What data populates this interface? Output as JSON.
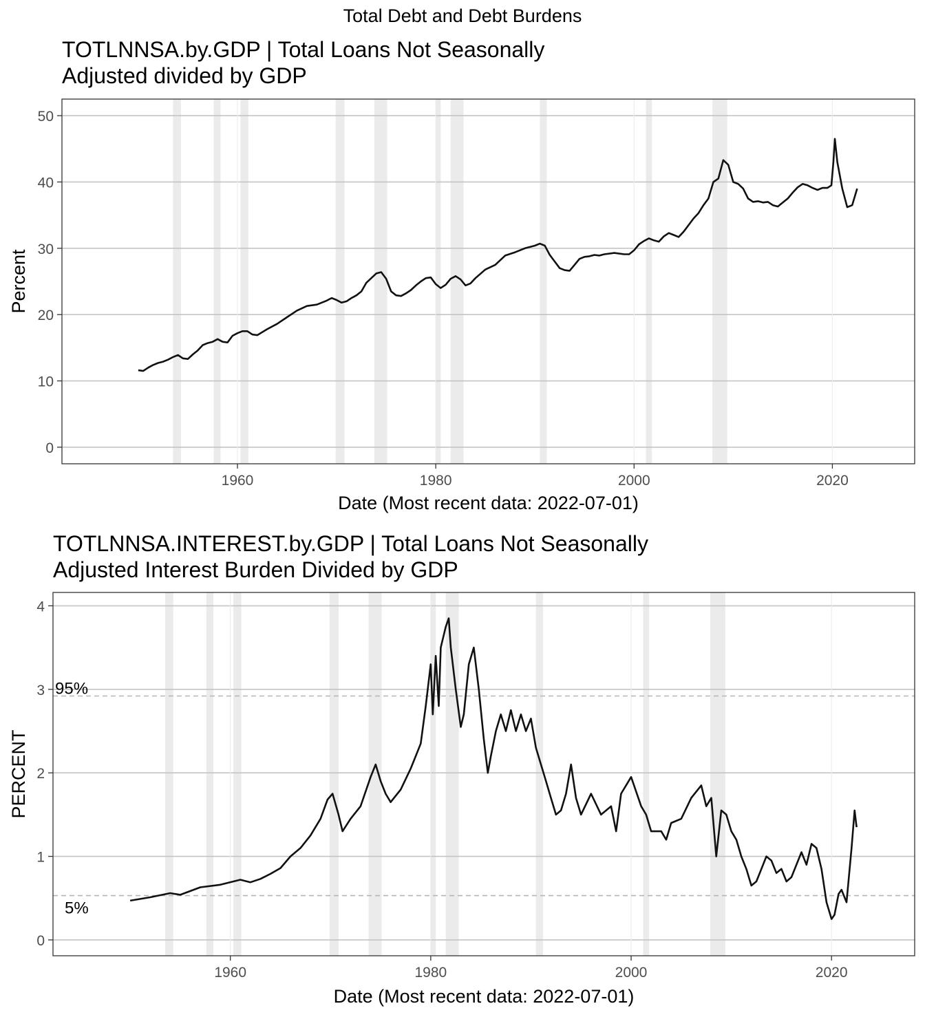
{
  "figure": {
    "title": "Total Debt and Debt Burdens"
  },
  "chart_data": [
    {
      "type": "line",
      "title_line1": "TOTLNNSA.by.GDP | Total Loans Not Seasonally",
      "title_line2": "Adjusted divided by GDP",
      "xlabel": "Date (Most recent data: 2022-07-01)",
      "ylabel": "Percent",
      "xlim": [
        1942.3,
        2028.3
      ],
      "ylim": [
        -2.5,
        52.5
      ],
      "x_ticks": [
        1960,
        1980,
        2000,
        2020
      ],
      "x_tick_labels": [
        "1960",
        "1980",
        "2000",
        "2020"
      ],
      "y_ticks": [
        0,
        10,
        20,
        30,
        40,
        50
      ],
      "y_tick_labels": [
        "0",
        "10",
        "20",
        "30",
        "40",
        "50"
      ],
      "grid": true,
      "recessions": [
        [
          1953.5,
          1954.3
        ],
        [
          1957.6,
          1958.3
        ],
        [
          1960.3,
          1961.1
        ],
        [
          1969.9,
          1970.8
        ],
        [
          1973.8,
          1975.1
        ],
        [
          1980.0,
          1980.5
        ],
        [
          1981.5,
          1982.8
        ],
        [
          1990.5,
          1991.2
        ],
        [
          2001.2,
          2001.8
        ],
        [
          2007.9,
          2009.4
        ]
      ],
      "series": [
        {
          "x": [
            1950.0,
            1950.5,
            1951.0,
            1951.5,
            1952.0,
            1952.5,
            1953.0,
            1953.5,
            1954.0,
            1954.5,
            1955.0,
            1955.5,
            1956.0,
            1956.5,
            1957.0,
            1957.5,
            1958.0,
            1958.5,
            1959.0,
            1959.5,
            1960.0,
            1960.5,
            1961.0,
            1961.5,
            1962.0,
            1963.0,
            1964.0,
            1965.0,
            1966.0,
            1967.0,
            1968.0,
            1969.0,
            1969.5,
            1970.0,
            1970.5,
            1971.0,
            1971.5,
            1972.0,
            1972.5,
            1973.0,
            1973.5,
            1974.0,
            1974.5,
            1975.0,
            1975.5,
            1976.0,
            1976.5,
            1977.0,
            1977.5,
            1978.0,
            1978.5,
            1979.0,
            1979.5,
            1980.0,
            1980.5,
            1981.0,
            1981.5,
            1982.0,
            1982.5,
            1983.0,
            1983.5,
            1984.0,
            1985.0,
            1986.0,
            1987.0,
            1988.0,
            1989.0,
            1990.0,
            1990.5,
            1991.0,
            1991.5,
            1992.0,
            1992.5,
            1993.0,
            1993.5,
            1994.0,
            1994.5,
            1995.0,
            1995.5,
            1996.0,
            1996.5,
            1997.0,
            1998.0,
            1999.0,
            1999.5,
            2000.0,
            2000.5,
            2001.0,
            2001.5,
            2002.0,
            2002.5,
            2003.0,
            2003.5,
            2004.0,
            2004.5,
            2005.0,
            2005.5,
            2006.0,
            2006.5,
            2007.0,
            2007.5,
            2008.0,
            2008.5,
            2009.0,
            2009.5,
            2010.0,
            2010.5,
            2011.0,
            2011.5,
            2012.0,
            2012.5,
            2013.0,
            2013.5,
            2014.0,
            2014.5,
            2015.0,
            2015.5,
            2016.0,
            2016.5,
            2017.0,
            2017.5,
            2018.0,
            2018.5,
            2019.0,
            2019.5,
            2019.9,
            2020.1,
            2020.25,
            2020.5,
            2021.0,
            2021.5,
            2022.0,
            2022.5
          ],
          "y": [
            11.6,
            11.5,
            12.0,
            12.4,
            12.7,
            12.9,
            13.2,
            13.6,
            13.9,
            13.4,
            13.3,
            14.0,
            14.6,
            15.4,
            15.7,
            15.9,
            16.3,
            15.9,
            15.8,
            16.8,
            17.2,
            17.5,
            17.5,
            17.0,
            16.9,
            17.8,
            18.6,
            19.6,
            20.6,
            21.3,
            21.5,
            22.1,
            22.5,
            22.2,
            21.8,
            22.0,
            22.5,
            22.9,
            23.5,
            24.8,
            25.5,
            26.2,
            26.4,
            25.4,
            23.5,
            22.9,
            22.8,
            23.2,
            23.7,
            24.4,
            25.0,
            25.5,
            25.6,
            24.6,
            24.0,
            24.5,
            25.4,
            25.8,
            25.3,
            24.4,
            24.7,
            25.5,
            26.8,
            27.5,
            28.9,
            29.4,
            30.0,
            30.4,
            30.7,
            30.4,
            29.0,
            28.0,
            27.0,
            26.7,
            26.6,
            27.5,
            28.4,
            28.7,
            28.8,
            29.0,
            28.9,
            29.1,
            29.3,
            29.1,
            29.1,
            29.7,
            30.6,
            31.1,
            31.5,
            31.2,
            31.0,
            31.8,
            32.3,
            32.0,
            31.7,
            32.5,
            33.5,
            34.5,
            35.3,
            36.5,
            37.5,
            40.0,
            40.5,
            43.3,
            42.6,
            40.0,
            39.7,
            39.0,
            37.5,
            37.0,
            37.1,
            36.9,
            37.0,
            36.5,
            36.3,
            36.9,
            37.5,
            38.4,
            39.2,
            39.7,
            39.5,
            39.1,
            38.8,
            39.1,
            39.1,
            39.5,
            43.0,
            46.5,
            43.0,
            39.0,
            36.2,
            36.5,
            39.0
          ]
        }
      ]
    },
    {
      "type": "line",
      "title_line1": "TOTLNNSA.INTEREST.by.GDP | Total Loans Not Seasonally",
      "title_line2": "Adjusted Interest Burden Divided by GDP",
      "xlabel": "Date (Most recent data: 2022-07-01)",
      "ylabel": "PERCENT",
      "xlim": [
        1942.3,
        2028.3
      ],
      "ylim": [
        -0.19,
        4.16
      ],
      "x_ticks": [
        1960,
        1980,
        2000,
        2020
      ],
      "x_tick_labels": [
        "1960",
        "1980",
        "2000",
        "2020"
      ],
      "y_ticks": [
        0,
        1,
        2,
        3,
        4
      ],
      "y_tick_labels": [
        "0",
        "1",
        "2",
        "3",
        "4"
      ],
      "grid": true,
      "recessions": [
        [
          1953.5,
          1954.3
        ],
        [
          1957.6,
          1958.3
        ],
        [
          1960.3,
          1961.1
        ],
        [
          1969.9,
          1970.8
        ],
        [
          1973.8,
          1975.1
        ],
        [
          1980.0,
          1980.5
        ],
        [
          1981.5,
          1982.8
        ],
        [
          1990.5,
          1991.2
        ],
        [
          2001.2,
          2001.8
        ],
        [
          2007.9,
          2009.4
        ]
      ],
      "reference_lines": [
        {
          "label": "95%",
          "y": 2.92
        },
        {
          "label": "5%",
          "y": 0.53
        }
      ],
      "series": [
        {
          "x": [
            1950.0,
            1952.0,
            1954.0,
            1955.0,
            1957.0,
            1959.0,
            1961.0,
            1962.0,
            1963.0,
            1964.0,
            1965.0,
            1966.0,
            1967.0,
            1968.0,
            1969.0,
            1969.7,
            1970.2,
            1970.8,
            1971.2,
            1972.0,
            1973.0,
            1974.0,
            1974.5,
            1975.0,
            1975.5,
            1976.0,
            1977.0,
            1978.0,
            1979.0,
            1979.5,
            1980.0,
            1980.2,
            1980.5,
            1980.8,
            1981.0,
            1981.5,
            1981.8,
            1982.0,
            1982.5,
            1983.0,
            1983.3,
            1983.8,
            1984.3,
            1984.8,
            1985.3,
            1985.7,
            1986.0,
            1986.5,
            1987.0,
            1987.5,
            1988.0,
            1988.5,
            1989.0,
            1989.5,
            1990.0,
            1990.5,
            1991.0,
            1991.5,
            1992.0,
            1992.5,
            1993.0,
            1993.5,
            1994.0,
            1994.5,
            1995.0,
            1996.0,
            1997.0,
            1998.0,
            1998.5,
            1999.0,
            2000.0,
            2001.0,
            2001.5,
            2002.0,
            2003.0,
            2003.5,
            2004.0,
            2005.0,
            2006.0,
            2007.0,
            2007.5,
            2008.0,
            2008.5,
            2009.0,
            2009.5,
            2010.0,
            2010.5,
            2011.0,
            2011.5,
            2012.0,
            2012.5,
            2013.0,
            2013.5,
            2014.0,
            2014.5,
            2015.0,
            2015.5,
            2016.0,
            2016.5,
            2017.0,
            2017.5,
            2018.0,
            2018.5,
            2019.0,
            2019.5,
            2020.0,
            2020.3,
            2020.7,
            2021.0,
            2021.5,
            2022.0,
            2022.3,
            2022.5
          ],
          "y": [
            0.47,
            0.51,
            0.56,
            0.54,
            0.63,
            0.66,
            0.72,
            0.69,
            0.73,
            0.79,
            0.86,
            1.0,
            1.1,
            1.25,
            1.45,
            1.68,
            1.75,
            1.5,
            1.3,
            1.45,
            1.6,
            1.95,
            2.1,
            1.9,
            1.75,
            1.65,
            1.8,
            2.05,
            2.35,
            2.8,
            3.3,
            2.7,
            3.4,
            2.8,
            3.5,
            3.75,
            3.85,
            3.5,
            3.0,
            2.55,
            2.7,
            3.3,
            3.5,
            3.0,
            2.4,
            2.0,
            2.2,
            2.5,
            2.7,
            2.5,
            2.75,
            2.5,
            2.7,
            2.5,
            2.65,
            2.3,
            2.1,
            1.9,
            1.7,
            1.5,
            1.55,
            1.75,
            2.1,
            1.7,
            1.5,
            1.75,
            1.5,
            1.6,
            1.3,
            1.75,
            1.95,
            1.6,
            1.5,
            1.3,
            1.3,
            1.2,
            1.4,
            1.45,
            1.7,
            1.85,
            1.6,
            1.7,
            1.0,
            1.55,
            1.5,
            1.3,
            1.2,
            1.0,
            0.85,
            0.65,
            0.7,
            0.85,
            1.0,
            0.95,
            0.8,
            0.85,
            0.7,
            0.75,
            0.9,
            1.05,
            0.9,
            1.15,
            1.1,
            0.85,
            0.45,
            0.25,
            0.3,
            0.55,
            0.6,
            0.45,
            1.1,
            1.55,
            1.35
          ]
        }
      ]
    }
  ]
}
